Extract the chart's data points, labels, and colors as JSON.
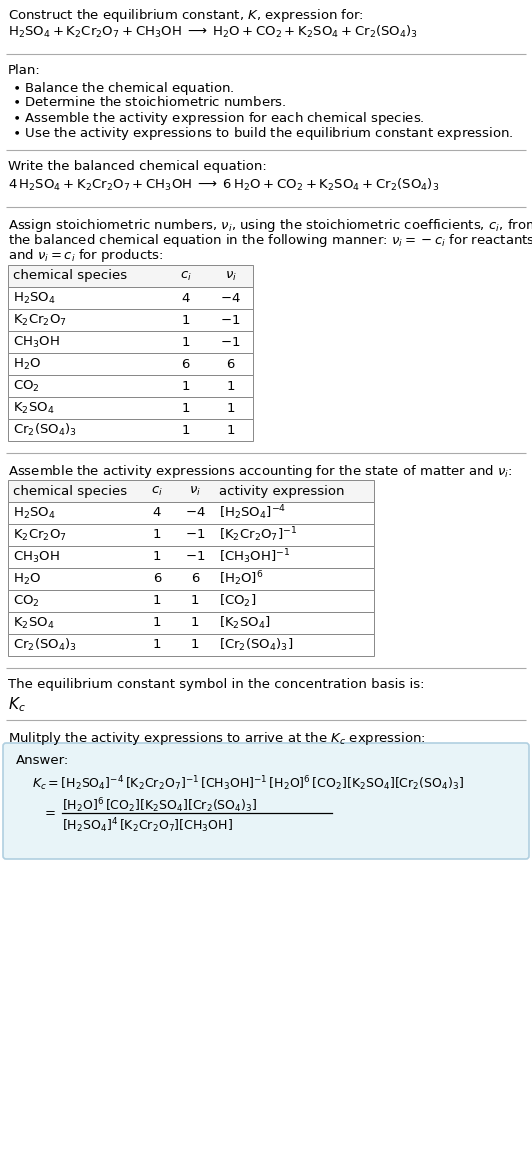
{
  "bg_color": "#ffffff",
  "answer_box_color": "#e8f4f8",
  "answer_box_border": "#b0cfe0",
  "separator_color": "#aaaaaa",
  "font_size": 9.5,
  "table_font_size": 9.5,
  "table1_rows": [
    [
      "$\\mathrm{H_2SO_4}$",
      "4",
      "$-4$"
    ],
    [
      "$\\mathrm{K_2Cr_2O_7}$",
      "1",
      "$-1$"
    ],
    [
      "$\\mathrm{CH_3OH}$",
      "1",
      "$-1$"
    ],
    [
      "$\\mathrm{H_2O}$",
      "6",
      "6"
    ],
    [
      "$\\mathrm{CO_2}$",
      "1",
      "1"
    ],
    [
      "$\\mathrm{K_2SO_4}$",
      "1",
      "1"
    ],
    [
      "$\\mathrm{Cr_2(SO_4)_3}$",
      "1",
      "1"
    ]
  ],
  "table2_rows": [
    [
      "$\\mathrm{H_2SO_4}$",
      "4",
      "$-4$",
      "$[\\mathrm{H_2SO_4}]^{-4}$"
    ],
    [
      "$\\mathrm{K_2Cr_2O_7}$",
      "1",
      "$-1$",
      "$[\\mathrm{K_2Cr_2O_7}]^{-1}$"
    ],
    [
      "$\\mathrm{CH_3OH}$",
      "1",
      "$-1$",
      "$[\\mathrm{CH_3OH}]^{-1}$"
    ],
    [
      "$\\mathrm{H_2O}$",
      "6",
      "6",
      "$[\\mathrm{H_2O}]^6$"
    ],
    [
      "$\\mathrm{CO_2}$",
      "1",
      "1",
      "$[\\mathrm{CO_2}]$"
    ],
    [
      "$\\mathrm{K_2SO_4}$",
      "1",
      "1",
      "$[\\mathrm{K_2SO_4}]$"
    ],
    [
      "$\\mathrm{Cr_2(SO_4)_3}$",
      "1",
      "1",
      "$[\\mathrm{Cr_2(SO_4)_3}]$"
    ]
  ]
}
